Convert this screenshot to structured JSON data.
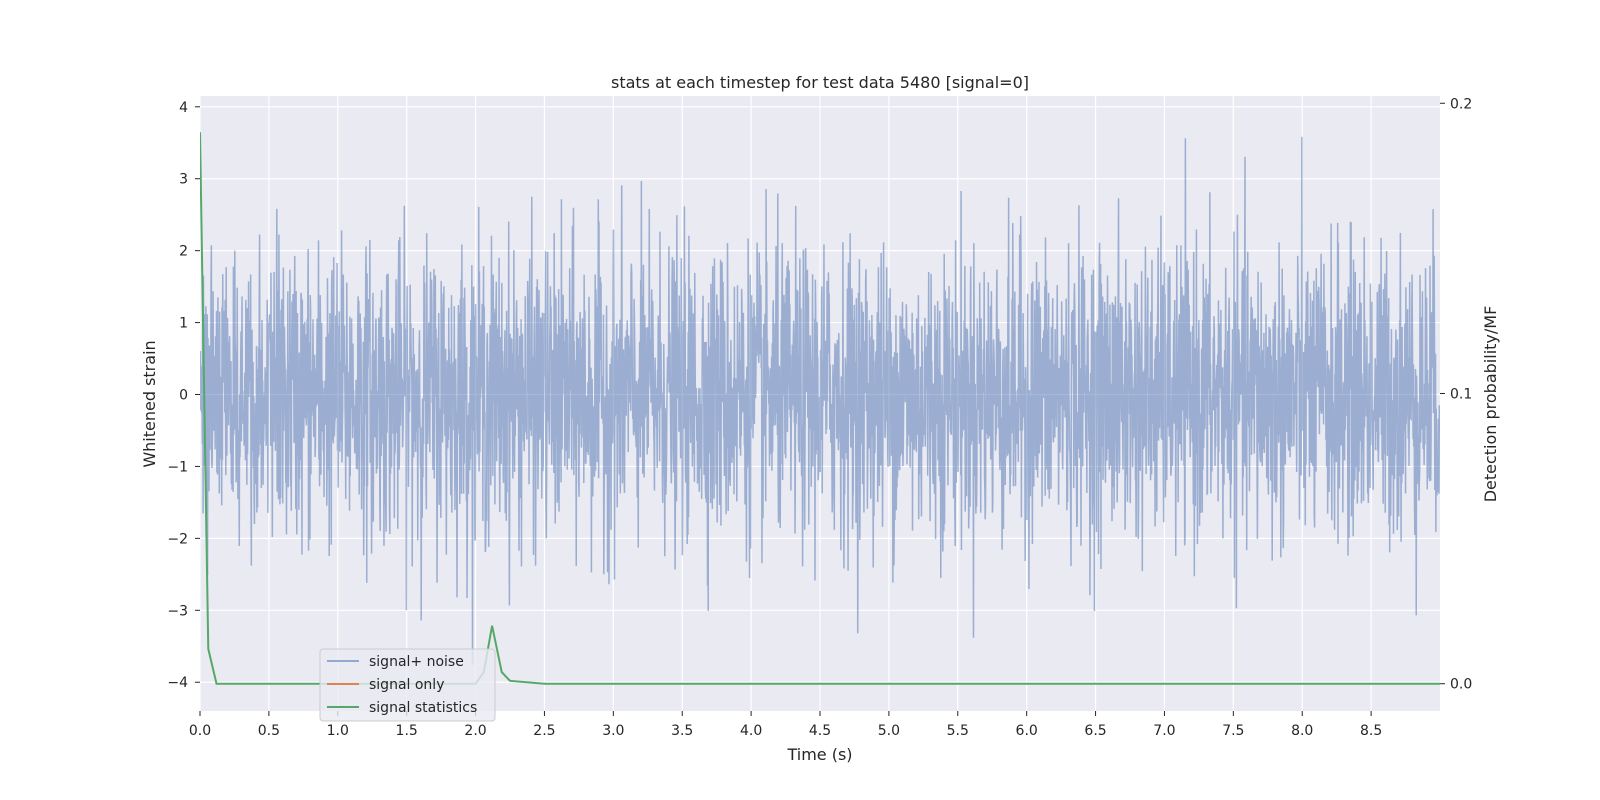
{
  "chart_data": {
    "type": "line",
    "title": "stats at each timestep for test data 5480 [signal=0]",
    "xlabel": "Time (s)",
    "ylabel": "Whitened strain",
    "y2label": "Detection probability/MF",
    "xlim": [
      0.0,
      9.0
    ],
    "ylim": [
      -4.4,
      4.15
    ],
    "y2lim": [
      -0.0094,
      0.2025
    ],
    "x_ticks": [
      0.0,
      0.5,
      1.0,
      1.5,
      2.0,
      2.5,
      3.0,
      3.5,
      4.0,
      4.5,
      5.0,
      5.5,
      6.0,
      6.5,
      7.0,
      7.5,
      8.0,
      8.5
    ],
    "x_tick_labels": [
      "0.0",
      "0.5",
      "1.0",
      "1.5",
      "2.0",
      "2.5",
      "3.0",
      "3.5",
      "4.0",
      "4.5",
      "5.0",
      "5.5",
      "6.0",
      "6.5",
      "7.0",
      "7.5",
      "8.0",
      "8.5"
    ],
    "y_ticks": [
      -4,
      -3,
      -2,
      -1,
      0,
      1,
      2,
      3,
      4
    ],
    "y_tick_labels": [
      "−4",
      "−3",
      "−2",
      "−1",
      "0",
      "1",
      "2",
      "3",
      "4"
    ],
    "y2_ticks": [
      0.0,
      0.1,
      0.2
    ],
    "y2_tick_labels": [
      "0.0",
      "0.1",
      "0.2"
    ],
    "grid": true,
    "legend_position": "lower-left",
    "series": [
      {
        "name": "signal+ noise",
        "axis": "left",
        "color": "#4c72b0",
        "alpha": 0.5,
        "kind": "noise",
        "x_range": [
          0.0,
          9.0
        ],
        "approx_std": 1.0,
        "y_range": [
          -4.0,
          3.8
        ]
      },
      {
        "name": "signal only",
        "axis": "left",
        "color": "#dd8452",
        "values": []
      },
      {
        "name": "signal statistics",
        "axis": "right",
        "color": "#55a868",
        "x": [
          0.0,
          0.06,
          0.12,
          0.5,
          1.0,
          1.5,
          2.0,
          2.06,
          2.12,
          2.19,
          2.25,
          2.5,
          3.0,
          9.0
        ],
        "values": [
          0.19,
          0.012,
          0.0,
          0.0,
          0.0,
          0.0,
          0.0,
          0.004,
          0.02,
          0.004,
          0.001,
          0.0,
          0.0,
          0.0
        ]
      }
    ]
  }
}
